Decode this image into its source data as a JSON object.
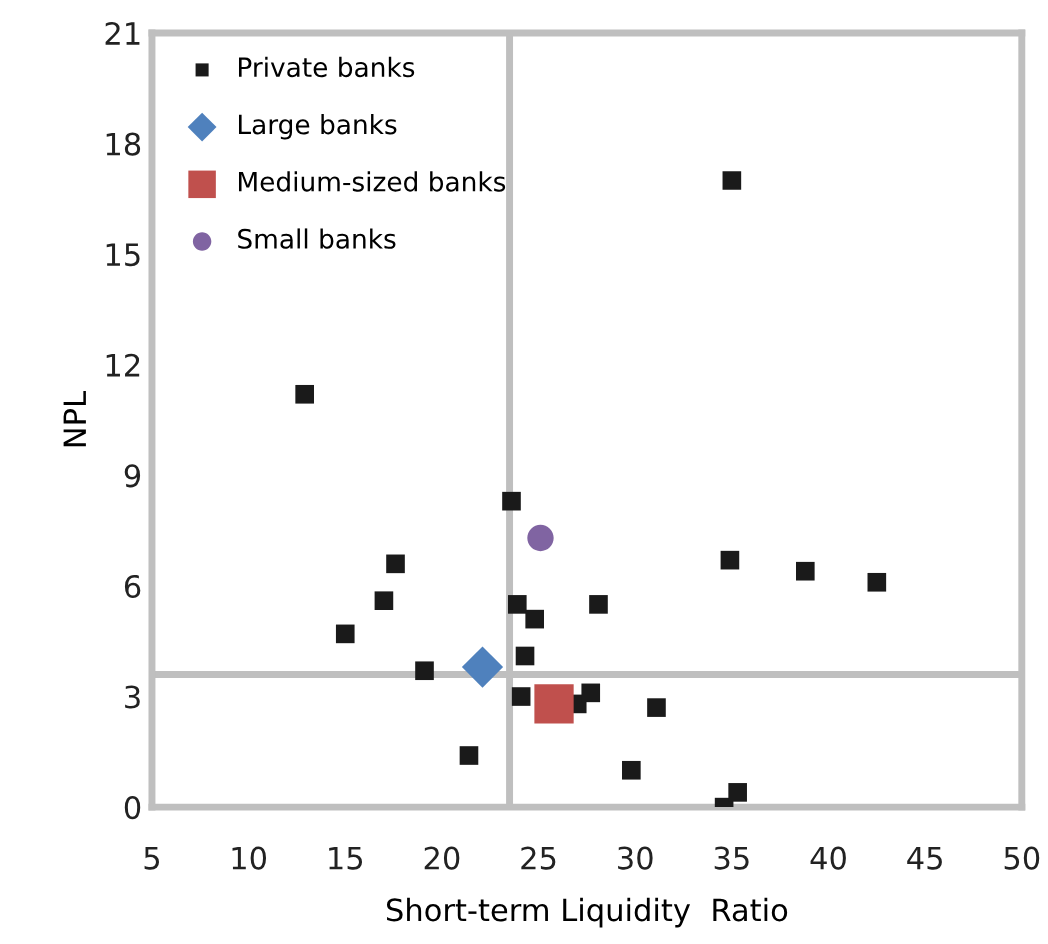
{
  "chart_data": {
    "type": "scatter",
    "xlabel": "Short-term Liquidity  Ratio",
    "ylabel": "NPL",
    "xlim": [
      5,
      50
    ],
    "xticks": [
      5,
      10,
      15,
      20,
      25,
      30,
      35,
      40,
      45,
      50
    ],
    "ylim": [
      0,
      21
    ],
    "yticks": [
      0,
      3,
      6,
      9,
      12,
      15,
      18,
      21
    ],
    "grid": false,
    "legend": "top left",
    "ref_lines": [
      {
        "axis": "x",
        "value": 23.5,
        "color": "#bfbfbf"
      },
      {
        "axis": "y",
        "value": 3.6,
        "color": "#bfbfbf"
      }
    ],
    "series": [
      {
        "name": "Private banks",
        "color": "#1a1a1a",
        "marker": "square",
        "x": [
          12.9,
          35.0,
          23.6,
          17.6,
          17.0,
          15.0,
          19.1,
          23.9,
          24.8,
          24.3,
          28.1,
          24.1,
          27.0,
          27.7,
          31.1,
          21.4,
          29.8,
          34.6,
          35.3,
          34.9,
          38.8,
          42.5
        ],
        "values": [
          11.2,
          17.0,
          8.3,
          6.6,
          5.6,
          4.7,
          3.7,
          5.5,
          5.1,
          4.1,
          5.5,
          3.0,
          2.8,
          3.1,
          2.7,
          1.4,
          1.0,
          0,
          0.4,
          6.7,
          6.4,
          6.1
        ]
      },
      {
        "name": "Large banks",
        "color": "#4f81bd",
        "marker": "diamond",
        "x": [
          22.1
        ],
        "values": [
          3.8
        ]
      },
      {
        "name": "Medium-sized banks",
        "color": "#c0504d",
        "marker": "square",
        "x": [
          25.8
        ],
        "values": [
          2.8
        ]
      },
      {
        "name": "Small banks",
        "color": "#8064a2",
        "marker": "circle",
        "x": [
          25.1
        ],
        "values": [
          7.3
        ]
      }
    ]
  }
}
